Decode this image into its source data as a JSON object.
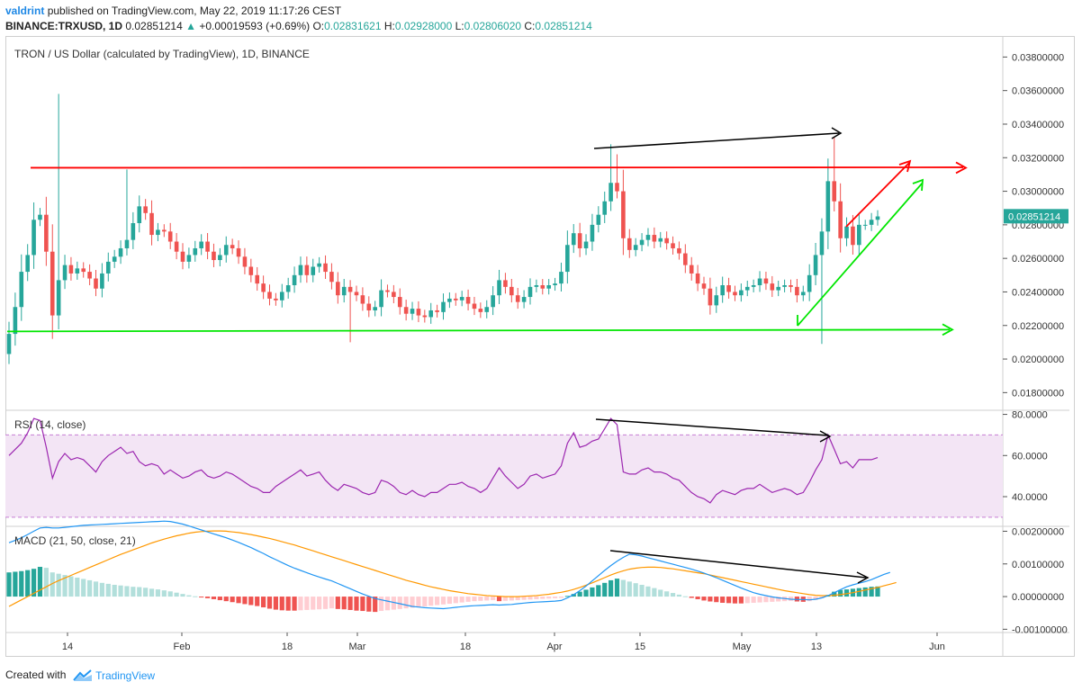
{
  "header": {
    "author": "valdrint",
    "published_text": "published on TradingView.com, May 22, 2019 11:17:26 CEST",
    "symbol": "BINANCE:TRXUSD, 1D",
    "last": "0.02851214",
    "change_arrow": "▲",
    "change": "+0.00019593 (+0.69%)",
    "o_label": "O:",
    "o_value": "0.02831621",
    "h_label": "H:",
    "h_value": "0.02928000",
    "l_label": "L:",
    "l_value": "0.02806020",
    "c_label": "C:",
    "c_value": "0.02851214"
  },
  "footer": {
    "created_with": "Created with",
    "brand": "TradingView"
  },
  "colors": {
    "up": "#26a69a",
    "down": "#ef5350",
    "rsi": "#9c27b0",
    "rsi_bg": "#f3e5f5",
    "macd": "#2196f3",
    "signal": "#ff9800",
    "hist_up_strong": "#26a69a",
    "hist_up_weak": "#b2dfdb",
    "hist_down_strong": "#ef5350",
    "hist_down_weak": "#ffcdd2",
    "resistance": "#ff0000",
    "support": "#00e600"
  },
  "chart_data": [
    {
      "type": "candlestick",
      "title": "TRON / US Dollar (calculated by TradingView), 1D, BINANCE",
      "ylim": [
        0.017,
        0.0392
      ],
      "y_ticks": [
        "0.03800000",
        "0.03600000",
        "0.03400000",
        "0.03200000",
        "0.03000000",
        "0.02800000",
        "0.02600000",
        "0.02400000",
        "0.02200000",
        "0.02000000",
        "0.01800000"
      ],
      "x_ticks": [
        "14",
        "Feb",
        "18",
        "Mar",
        "18",
        "Apr",
        "15",
        "May",
        "13",
        "Jun"
      ],
      "last_price_label": "0.02851214",
      "resistance_level": 0.0314,
      "support_level": 0.0217,
      "annotations": [
        "resistance line (red)",
        "support line (green)",
        "higher-high arrow (black)",
        "ascending support (green)",
        "rising arrow (red)"
      ],
      "closes": [
        0.0215,
        0.0231,
        0.0252,
        0.0262,
        0.0283,
        0.0286,
        0.0264,
        0.0226,
        0.0247,
        0.0256,
        0.0251,
        0.0254,
        0.0252,
        0.0248,
        0.0242,
        0.0251,
        0.0258,
        0.0261,
        0.0266,
        0.0271,
        0.0281,
        0.0291,
        0.0287,
        0.0274,
        0.0277,
        0.0276,
        0.027,
        0.0264,
        0.0258,
        0.0262,
        0.0266,
        0.027,
        0.0264,
        0.0259,
        0.0262,
        0.0268,
        0.0266,
        0.0261,
        0.0255,
        0.025,
        0.0245,
        0.024,
        0.0236,
        0.0235,
        0.024,
        0.0244,
        0.025,
        0.0256,
        0.025,
        0.0255,
        0.0257,
        0.0252,
        0.0246,
        0.0238,
        0.0243,
        0.024,
        0.0238,
        0.0233,
        0.0229,
        0.0231,
        0.0241,
        0.024,
        0.0237,
        0.0231,
        0.0227,
        0.023,
        0.0226,
        0.0225,
        0.0229,
        0.0228,
        0.0234,
        0.0236,
        0.0235,
        0.0237,
        0.0233,
        0.023,
        0.0228,
        0.0231,
        0.0238,
        0.0247,
        0.0243,
        0.0238,
        0.0234,
        0.0237,
        0.0243,
        0.0244,
        0.0242,
        0.0244,
        0.0245,
        0.0252,
        0.0268,
        0.0275,
        0.0266,
        0.027,
        0.028,
        0.0286,
        0.0294,
        0.0305,
        0.03,
        0.0272,
        0.0265,
        0.0268,
        0.0271,
        0.0274,
        0.027,
        0.0272,
        0.0269,
        0.0266,
        0.0263,
        0.0256,
        0.0251,
        0.0245,
        0.0242,
        0.0232,
        0.0238,
        0.0244,
        0.024,
        0.0238,
        0.0241,
        0.0243,
        0.0244,
        0.0248,
        0.0245,
        0.0241,
        0.0243,
        0.0244,
        0.0243,
        0.0238,
        0.024,
        0.025,
        0.0262,
        0.0276,
        0.0306,
        0.0294,
        0.0272,
        0.0279,
        0.0268,
        0.028,
        0.028,
        0.0283,
        0.0285
      ]
    },
    {
      "type": "line",
      "title": "RSI (14, close)",
      "ylim": [
        26,
        82
      ],
      "bands": [
        30,
        70
      ],
      "y_ticks": [
        "80.0000",
        "60.0000",
        "40.0000"
      ],
      "series": [
        {
          "name": "RSI",
          "values": [
            60,
            63,
            66,
            71,
            78,
            77,
            64,
            49,
            57,
            61,
            58,
            59,
            58,
            55,
            52,
            57,
            60,
            62,
            64,
            61,
            62,
            57,
            55,
            56,
            55,
            51,
            53,
            51,
            49,
            50,
            52,
            53,
            50,
            49,
            50,
            52,
            51,
            49,
            47,
            45,
            44,
            42,
            42,
            45,
            47,
            49,
            51,
            53,
            50,
            51,
            52,
            48,
            45,
            43,
            46,
            45,
            44,
            42,
            41,
            42,
            48,
            47,
            45,
            42,
            41,
            43,
            41,
            40,
            42,
            42,
            44,
            46,
            46,
            47,
            45,
            44,
            42,
            44,
            49,
            54,
            50,
            47,
            44,
            46,
            50,
            51,
            49,
            50,
            51,
            55,
            66,
            71,
            64,
            65,
            67,
            68,
            73,
            78,
            75,
            52,
            51,
            51,
            53,
            54,
            52,
            52,
            51,
            49,
            48,
            45,
            42,
            40,
            39,
            37,
            41,
            43,
            42,
            41,
            43,
            44,
            44,
            46,
            44,
            42,
            43,
            44,
            43,
            41,
            42,
            47,
            53,
            58,
            70,
            63,
            56,
            57,
            54,
            58,
            58,
            58,
            59
          ]
        }
      ]
    },
    {
      "type": "bar+line",
      "title": "MACD (21, 50, close, 21)",
      "ylim": [
        -0.0011,
        0.00215
      ],
      "y_ticks": [
        "0.00200000",
        "0.00100000",
        "0.00000000",
        "-0.00100000"
      ],
      "series": [
        {
          "name": "Histogram",
          "values": [
            0.00074,
            0.00076,
            0.00078,
            0.00081,
            0.00085,
            0.00091,
            0.00088,
            0.00074,
            0.0007,
            0.00066,
            0.00062,
            0.00058,
            0.00054,
            0.0005,
            0.00046,
            0.00042,
            0.00039,
            0.00036,
            0.00034,
            0.00032,
            0.0003,
            0.00029,
            0.00027,
            0.00024,
            0.00022,
            0.00019,
            0.00016,
            0.00012,
            8e-05,
            4e-05,
            1e-05,
            -2e-05,
            -5e-05,
            -8e-05,
            -0.00011,
            -0.00014,
            -0.00017,
            -0.0002,
            -0.00023,
            -0.00026,
            -0.00029,
            -0.00033,
            -0.00037,
            -0.0004,
            -0.00042,
            -0.00043,
            -0.00043,
            -0.00042,
            -0.00041,
            -0.0004,
            -0.00039,
            -0.00038,
            -0.00036,
            -0.00038,
            -0.00039,
            -0.00041,
            -0.00043,
            -0.00044,
            -0.00046,
            -0.00047,
            -0.00044,
            -0.00042,
            -0.0004,
            -0.00038,
            -0.00036,
            -0.00034,
            -0.00032,
            -0.0003,
            -0.00028,
            -0.00026,
            -0.00024,
            -0.00022,
            -0.0002,
            -0.00018,
            -0.00016,
            -0.00014,
            -0.00013,
            -0.00012,
            -0.00011,
            -0.00014,
            -0.00013,
            -0.00012,
            -0.00011,
            -0.0001,
            -9e-05,
            -8e-05,
            -7e-05,
            -6e-05,
            -5e-05,
            -4e-05,
            2e-05,
            8e-05,
            0.00015,
            0.00021,
            0.00028,
            0.00035,
            0.00042,
            0.0005,
            0.00055,
            0.00051,
            0.00046,
            0.00041,
            0.00036,
            0.00031,
            0.00026,
            0.00021,
            0.00016,
            0.00011,
            6e-05,
            1e-05,
            -4e-05,
            -8e-05,
            -0.00012,
            -0.00015,
            -0.00017,
            -0.00019,
            -0.0002,
            -0.00021,
            -0.00021,
            -0.0002,
            -0.00019,
            -0.00018,
            -0.00017,
            -0.00016,
            -0.00015,
            -0.00014,
            -0.00013,
            -0.00015,
            -0.00016,
            -0.00014,
            -0.0001,
            -5e-05,
            5e-05,
            0.00015,
            0.0002,
            0.00022,
            0.00024,
            0.00026,
            0.00028,
            0.0003,
            0.00031
          ]
        },
        {
          "name": "MACD",
          "values": [
            0.00165,
            0.00172,
            0.0018,
            0.0019,
            0.002,
            0.0021,
            0.00212,
            0.0021,
            0.0021,
            0.00212,
            0.00214,
            0.00216,
            0.00218,
            0.00219,
            0.0022,
            0.00221,
            0.00222,
            0.00223,
            0.00224,
            0.00225,
            0.00226,
            0.00227,
            0.00228,
            0.00229,
            0.0023,
            0.00231,
            0.0023,
            0.00226,
            0.00222,
            0.00216,
            0.0021,
            0.00204,
            0.00198,
            0.00192,
            0.00186,
            0.0018,
            0.00173,
            0.00166,
            0.00158,
            0.0015,
            0.00141,
            0.00132,
            0.00122,
            0.00113,
            0.00104,
            0.00095,
            0.00087,
            0.0008,
            0.00073,
            0.00066,
            0.0006,
            0.00054,
            0.00048,
            0.0004,
            0.00032,
            0.00024,
            0.00016,
            8e-05,
            1e-05,
            -6e-05,
            -0.0001,
            -0.00014,
            -0.00018,
            -0.00022,
            -0.00026,
            -0.0003,
            -0.00032,
            -0.00034,
            -0.00035,
            -0.00036,
            -0.00037,
            -0.00035,
            -0.00033,
            -0.00031,
            -0.00029,
            -0.00028,
            -0.00027,
            -0.00026,
            -0.00025,
            -0.00026,
            -0.00025,
            -0.00024,
            -0.00022,
            -0.0002,
            -0.00018,
            -0.00017,
            -0.00016,
            -0.00015,
            -0.00014,
            -0.00012,
            -4e-05,
            6e-05,
            0.00018,
            0.00032,
            0.00048,
            0.00064,
            0.0008,
            0.00095,
            0.00108,
            0.0012,
            0.0013,
            0.00128,
            0.00124,
            0.00119,
            0.00114,
            0.00109,
            0.00104,
            0.00099,
            0.00094,
            0.00089,
            0.00084,
            0.00078,
            0.00072,
            0.00065,
            0.00058,
            0.0005,
            0.00042,
            0.00034,
            0.00026,
            0.00019,
            0.00012,
            7e-05,
            3e-05,
            -1e-05,
            -4e-05,
            -6e-05,
            -8e-05,
            -9e-05,
            -9e-05,
            -0.0001,
            -8e-05,
            -4e-05,
            3e-05,
            0.00012,
            0.00021,
            0.0003,
            0.00036,
            0.00041,
            0.00046,
            0.00052,
            0.0006,
            0.00068,
            0.00074
          ]
        },
        {
          "name": "Signal",
          "values": [
            -0.0003,
            -0.0002,
            -0.0001,
            0.0,
            0.0001,
            0.0002,
            0.0003,
            0.0004,
            0.00049,
            0.00057,
            0.00065,
            0.00073,
            0.00081,
            0.00089,
            0.00097,
            0.00105,
            0.00113,
            0.00121,
            0.00129,
            0.00136,
            0.00143,
            0.0015,
            0.00157,
            0.00164,
            0.0017,
            0.00176,
            0.00181,
            0.00186,
            0.0019,
            0.00194,
            0.00197,
            0.00199,
            0.002,
            0.00201,
            0.00201,
            0.002,
            0.00198,
            0.00196,
            0.00193,
            0.0019,
            0.00186,
            0.00182,
            0.00178,
            0.00173,
            0.00168,
            0.00163,
            0.00158,
            0.00152,
            0.00146,
            0.0014,
            0.00134,
            0.00128,
            0.00122,
            0.00116,
            0.0011,
            0.00104,
            0.00098,
            0.00092,
            0.00086,
            0.0008,
            0.00074,
            0.00068,
            0.00062,
            0.00056,
            0.0005,
            0.00045,
            0.0004,
            0.00035,
            0.0003,
            0.00026,
            0.00022,
            0.00018,
            0.00015,
            0.00012,
            9e-05,
            7e-05,
            5e-05,
            3e-05,
            2e-05,
            1e-05,
            0.0,
            0.0,
            0.0,
            1e-05,
            2e-05,
            3e-05,
            5e-05,
            7e-05,
            0.0001,
            0.00013,
            0.00017,
            0.00022,
            0.00028,
            0.00035,
            0.00042,
            0.0005,
            0.00058,
            0.00066,
            0.00073,
            0.00079,
            0.00084,
            0.00087,
            0.00089,
            0.0009,
            0.0009,
            0.00089,
            0.00087,
            0.00085,
            0.00082,
            0.00079,
            0.00076,
            0.00073,
            0.0007,
            0.00066,
            0.00062,
            0.00058,
            0.00054,
            0.0005,
            0.00046,
            0.00042,
            0.00038,
            0.00034,
            0.0003,
            0.00026,
            0.00022,
            0.00018,
            0.00015,
            0.00012,
            9e-05,
            6e-05,
            4e-05,
            3e-05,
            3e-05,
            4e-05,
            6e-05,
            9e-05,
            0.00012,
            0.00016,
            0.0002,
            0.00024,
            0.00028,
            0.00033,
            0.00038,
            0.00043
          ]
        }
      ]
    }
  ]
}
